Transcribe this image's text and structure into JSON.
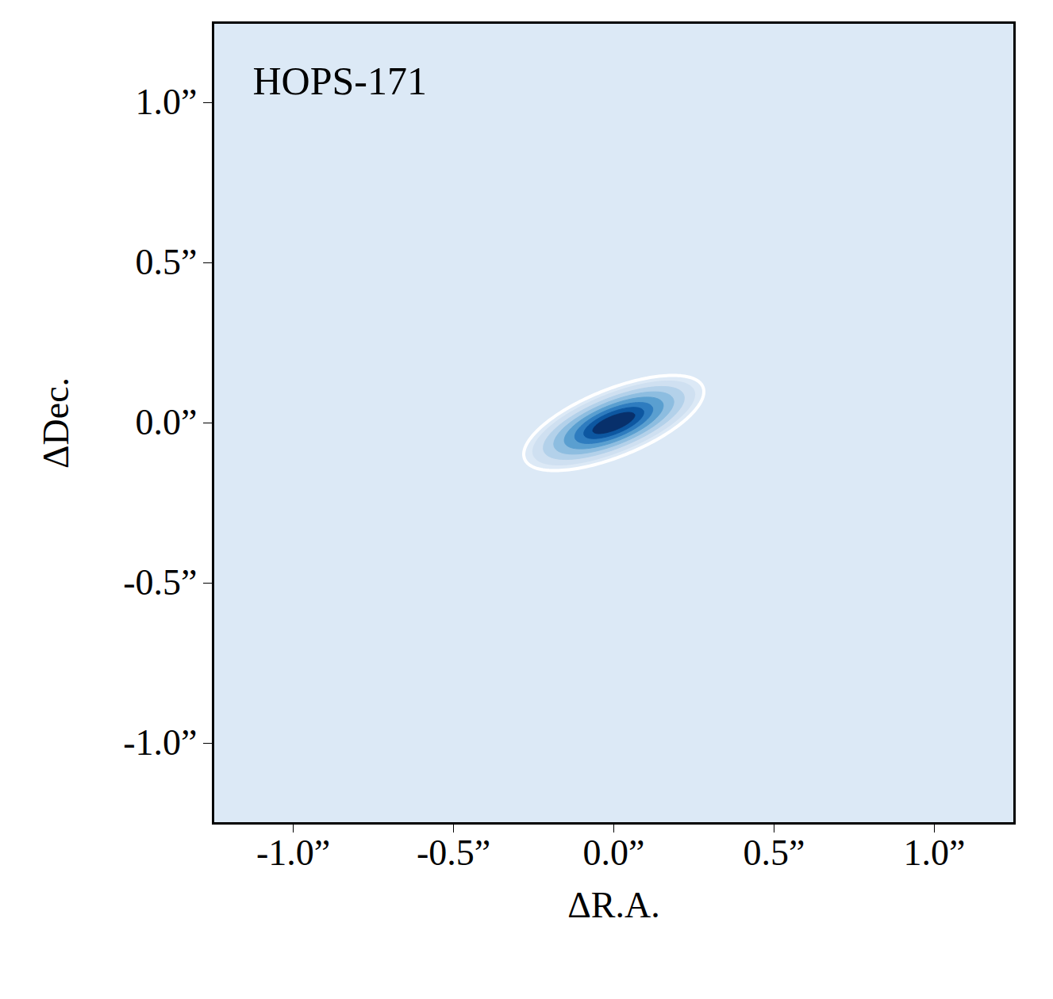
{
  "chart_data": {
    "type": "contour",
    "title": "HOPS-171",
    "xlabel": "ΔR.A.",
    "ylabel": "ΔDec.",
    "xlim": [
      -1.25,
      1.25
    ],
    "ylim": [
      -1.25,
      1.25
    ],
    "xticks": [
      {
        "value": -1,
        "label": "-1.0”"
      },
      {
        "value": -0.5,
        "label": "-0.5”"
      },
      {
        "value": 0,
        "label": "0.0”"
      },
      {
        "value": 0.5,
        "label": "0.5”"
      },
      {
        "value": 1,
        "label": "1.0”"
      }
    ],
    "yticks": [
      {
        "value": -1,
        "label": "-1.0”"
      },
      {
        "value": -0.5,
        "label": "-0.5”"
      },
      {
        "value": 0,
        "label": "0.0”"
      },
      {
        "value": 0.5,
        "label": "0.5”"
      },
      {
        "value": 1,
        "label": "1.0”"
      }
    ],
    "grid": false,
    "center": [
      0,
      0
    ],
    "angle": 22,
    "contours": [
      {
        "type": "area",
        "color": "#cfe0f1",
        "semi_major": 0.27,
        "semi_minor": 0.09
      },
      {
        "type": "area",
        "color": "#b3d1ea",
        "semi_major": 0.235,
        "semi_minor": 0.078
      },
      {
        "type": "area",
        "color": "#8dbde0",
        "semi_major": 0.2,
        "semi_minor": 0.067
      },
      {
        "type": "area",
        "color": "#5a9fd0",
        "semi_major": 0.165,
        "semi_minor": 0.056
      },
      {
        "type": "area",
        "color": "#2e7cbf",
        "semi_major": 0.13,
        "semi_minor": 0.045
      },
      {
        "type": "area",
        "color": "#0d57a1",
        "semi_major": 0.1,
        "semi_minor": 0.034
      },
      {
        "type": "area",
        "color": "#08306b",
        "semi_major": 0.07,
        "semi_minor": 0.022
      },
      {
        "type": "line",
        "color": "#ffffff",
        "semi_major": 0.3,
        "semi_minor": 0.105
      }
    ]
  }
}
